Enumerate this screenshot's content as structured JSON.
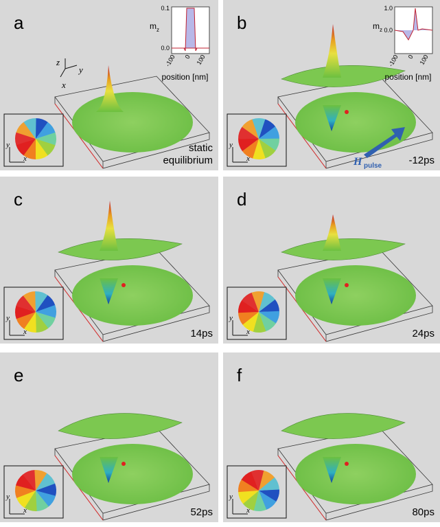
{
  "panels": [
    {
      "label": "a",
      "caption": [
        "static",
        "equilibrium"
      ],
      "axes3d": [
        "z",
        "y",
        "x"
      ],
      "vortex_axes": [
        "y",
        "x"
      ],
      "inset": {
        "ylabel": "m",
        "ylabel_sub": "z",
        "yticks": [
          "0.1",
          "0.0"
        ],
        "xticks": [
          "-100",
          "0",
          "100"
        ],
        "xlabel": "position [nm]"
      }
    },
    {
      "label": "b",
      "caption": [
        "-12ps"
      ],
      "vortex_axes": [
        "y",
        "x"
      ],
      "field": {
        "symbol": "H",
        "sub": "pulse"
      },
      "inset": {
        "ylabel": "m",
        "ylabel_sub": "z",
        "yticks": [
          "1.0",
          "0.0"
        ],
        "xticks": [
          "-100",
          "0",
          "100"
        ],
        "xlabel": "position [nm]"
      }
    },
    {
      "label": "c",
      "caption": [
        "14ps"
      ],
      "vortex_axes": [
        "y",
        "x"
      ]
    },
    {
      "label": "d",
      "caption": [
        "24ps"
      ],
      "vortex_axes": [
        "y",
        "x"
      ]
    },
    {
      "label": "e",
      "caption": [
        "52ps"
      ],
      "vortex_axes": [
        "y",
        "x"
      ]
    },
    {
      "label": "f",
      "caption": [
        "80ps"
      ],
      "vortex_axes": [
        "y",
        "x"
      ]
    }
  ]
}
